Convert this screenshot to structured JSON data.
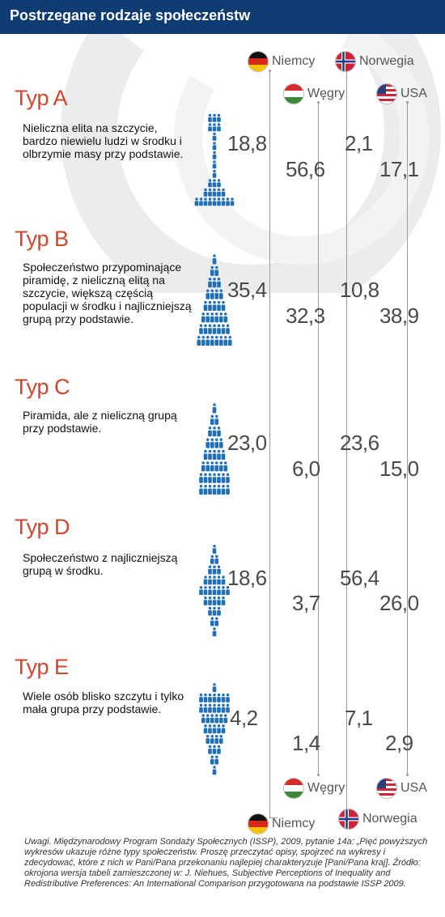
{
  "title": "Postrzegane rodzaje społeczeństw",
  "countries": {
    "niemcy": "Niemcy",
    "norwegia": "Norwegia",
    "wegry": "Węgry",
    "usa": "USA"
  },
  "chart_data": {
    "type": "table",
    "title": "Postrzegane rodzaje społeczeństw",
    "columns": [
      "Niemcy",
      "Węgry",
      "Norwegia",
      "USA"
    ],
    "rows": [
      {
        "label": "Typ A",
        "description": "Nieliczna elita na szczycie, bardzo niewielu ludzi w środku i olbrzymie masy przy podstawie.",
        "values": {
          "niemcy": "18,8",
          "wegry": "56,6",
          "norwegia": "2,1",
          "usa": "17,1"
        }
      },
      {
        "label": "Typ B",
        "description": "Społeczeństwo przypominające piramidę, z nieliczną elitą na szczycie, większą częścią populacji w środku i najliczniejszą grupą przy podstawie.",
        "values": {
          "niemcy": "35,4",
          "wegry": "32,3",
          "norwegia": "10,8",
          "usa": "38,9"
        }
      },
      {
        "label": "Typ C",
        "description": "Piramida, ale z nieliczną grupą przy podstawie.",
        "values": {
          "niemcy": "23,0",
          "wegry": "6,0",
          "norwegia": "23,6",
          "usa": "15,0"
        }
      },
      {
        "label": "Typ D",
        "description": "Społeczeństwo z najliczniejszą grupą w środku.",
        "values": {
          "niemcy": "18,6",
          "wegry": "3,7",
          "norwegia": "56,4",
          "usa": "26,0"
        }
      },
      {
        "label": "Typ E",
        "description": "Wiele osób blisko szczytu i tylko mała grupa przy podstawie.",
        "values": {
          "niemcy": "4,2",
          "wegry": "1,4",
          "norwegia": "7,1",
          "usa": "2,9"
        }
      }
    ]
  },
  "footnote": "Uwagi. Międzynarodowy Program Sondaży Społecznych (ISSP), 2009, pytanie 14a: „Pięć powyższych wykresów ukazuje różne typy społeczeństw. Proszę przeczytać opisy, spojrzeć na wykresy i zdecydować, które z nich w Pani/Pana przekonaniu najlepiej charakteryzuje [Pani/Pana kraj]. Źródło: okrojona wersja tabeli zamieszczonej w: J. Niehues, Subjective Perceptions of Inequality and Redistributive Preferences: An International Comparison przygotowana na podstawie ISSP 2009.",
  "colors": {
    "header": "#0d3b72",
    "accent": "#d2452c",
    "figure": "#1e6fb8",
    "numbers": "#4a4a4a"
  },
  "icons": {
    "figure": "person-icon",
    "flags": [
      "germany-flag-icon",
      "norway-flag-icon",
      "hungary-flag-icon",
      "usa-flag-icon"
    ]
  }
}
